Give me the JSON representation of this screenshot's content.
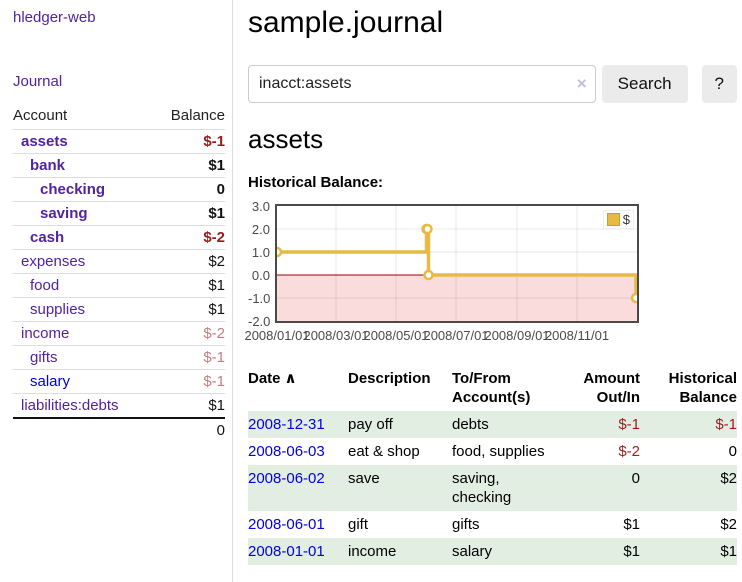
{
  "app": {
    "brand": "hledger-web",
    "nav_journal": "Journal"
  },
  "sidebar": {
    "header": {
      "account": "Account",
      "balance": "Balance"
    },
    "accounts": [
      {
        "name": "assets",
        "balance": "$-1",
        "indent": 1,
        "bold": true,
        "balance_style": "neg-strong"
      },
      {
        "name": "bank",
        "balance": "$1",
        "indent": 2,
        "bold": true,
        "balance_style": null
      },
      {
        "name": "checking",
        "balance": "0",
        "indent": 3,
        "bold": true,
        "balance_style": null
      },
      {
        "name": "saving",
        "balance": "$1",
        "indent": 3,
        "bold": true,
        "balance_style": null
      },
      {
        "name": "cash",
        "balance": "$-2",
        "indent": 2,
        "bold": true,
        "balance_style": "neg-strong"
      },
      {
        "name": "expenses",
        "balance": "$2",
        "indent": 1,
        "bold": false,
        "balance_style": null
      },
      {
        "name": "food",
        "balance": "$1",
        "indent": 2,
        "bold": false,
        "balance_style": null
      },
      {
        "name": "supplies",
        "balance": "$1",
        "indent": 2,
        "bold": false,
        "balance_style": null
      },
      {
        "name": "income",
        "balance": "$-2",
        "indent": 1,
        "bold": false,
        "balance_style": "neg-soft"
      },
      {
        "name": "gifts",
        "balance": "$-1",
        "indent": 2,
        "bold": false,
        "balance_style": "neg-soft"
      },
      {
        "name": "salary",
        "balance": "$-1",
        "indent": 2,
        "bold": false,
        "balance_style": "neg-soft",
        "name_style": "blue"
      },
      {
        "name": "liabilities:debts",
        "balance": "$1",
        "indent": 1,
        "bold": false,
        "balance_style": null
      }
    ],
    "total": "0"
  },
  "main": {
    "title": "sample.journal",
    "search": {
      "value": "inacct:assets",
      "clear_icon": "×",
      "button_label": "Search",
      "help_label": "?"
    },
    "account_heading": "assets",
    "chart_label": "Historical Balance:"
  },
  "chart_data": {
    "type": "line",
    "title": "Historical Balance",
    "step": true,
    "series": [
      {
        "name": "$",
        "color": "#e7bb42",
        "points": [
          [
            "2008-01-01",
            1
          ],
          [
            "2008-06-01",
            2
          ],
          [
            "2008-06-02",
            2
          ],
          [
            "2008-06-03",
            0
          ],
          [
            "2008-12-31",
            -1
          ]
        ]
      }
    ],
    "ylim": [
      -2,
      3
    ],
    "yticks": [
      "3.0",
      "2.0",
      "1.0",
      "0.0",
      "-1.0",
      "-2.0"
    ],
    "xticks": [
      "2008/01/01",
      "2008/03/01",
      "2008/05/01",
      "2008/07/01",
      "2008/09/01",
      "2008/11/01"
    ],
    "xmin": "2008-01-01",
    "xmax": "2009-01-01",
    "grid": true,
    "legend_position": "top-right",
    "negative_region_color": "#fadcdc",
    "zero_line_color": "#990000"
  },
  "register": {
    "sort_caret": "∧",
    "headers": [
      {
        "lines": [
          "Date"
        ],
        "align": "left",
        "sorted": true
      },
      {
        "lines": [
          "Description"
        ],
        "align": "left"
      },
      {
        "lines": [
          "To/From",
          "Account(s)"
        ],
        "align": "left"
      },
      {
        "lines": [
          "Amount",
          "Out/In"
        ],
        "align": "right"
      },
      {
        "lines": [
          "Historical",
          "Balance"
        ],
        "align": "right"
      }
    ],
    "rows": [
      {
        "date": "2008-12-31",
        "description": "pay off",
        "accounts": "debts",
        "amount": "$-1",
        "balance": "$-1",
        "amount_neg": true,
        "balance_neg": true
      },
      {
        "date": "2008-06-03",
        "description": "eat & shop",
        "accounts": "food, supplies",
        "amount": "$-2",
        "balance": "0",
        "amount_neg": true,
        "balance_neg": false
      },
      {
        "date": "2008-06-02",
        "description": "save",
        "accounts": "saving, checking",
        "amount": "0",
        "balance": "$2",
        "amount_neg": false,
        "balance_neg": false
      },
      {
        "date": "2008-06-01",
        "description": "gift",
        "accounts": "gifts",
        "amount": "$1",
        "balance": "$2",
        "amount_neg": false,
        "balance_neg": false
      },
      {
        "date": "2008-01-01",
        "description": "income",
        "accounts": "salary",
        "amount": "$1",
        "balance": "$1",
        "amount_neg": false,
        "balance_neg": false
      }
    ]
  }
}
